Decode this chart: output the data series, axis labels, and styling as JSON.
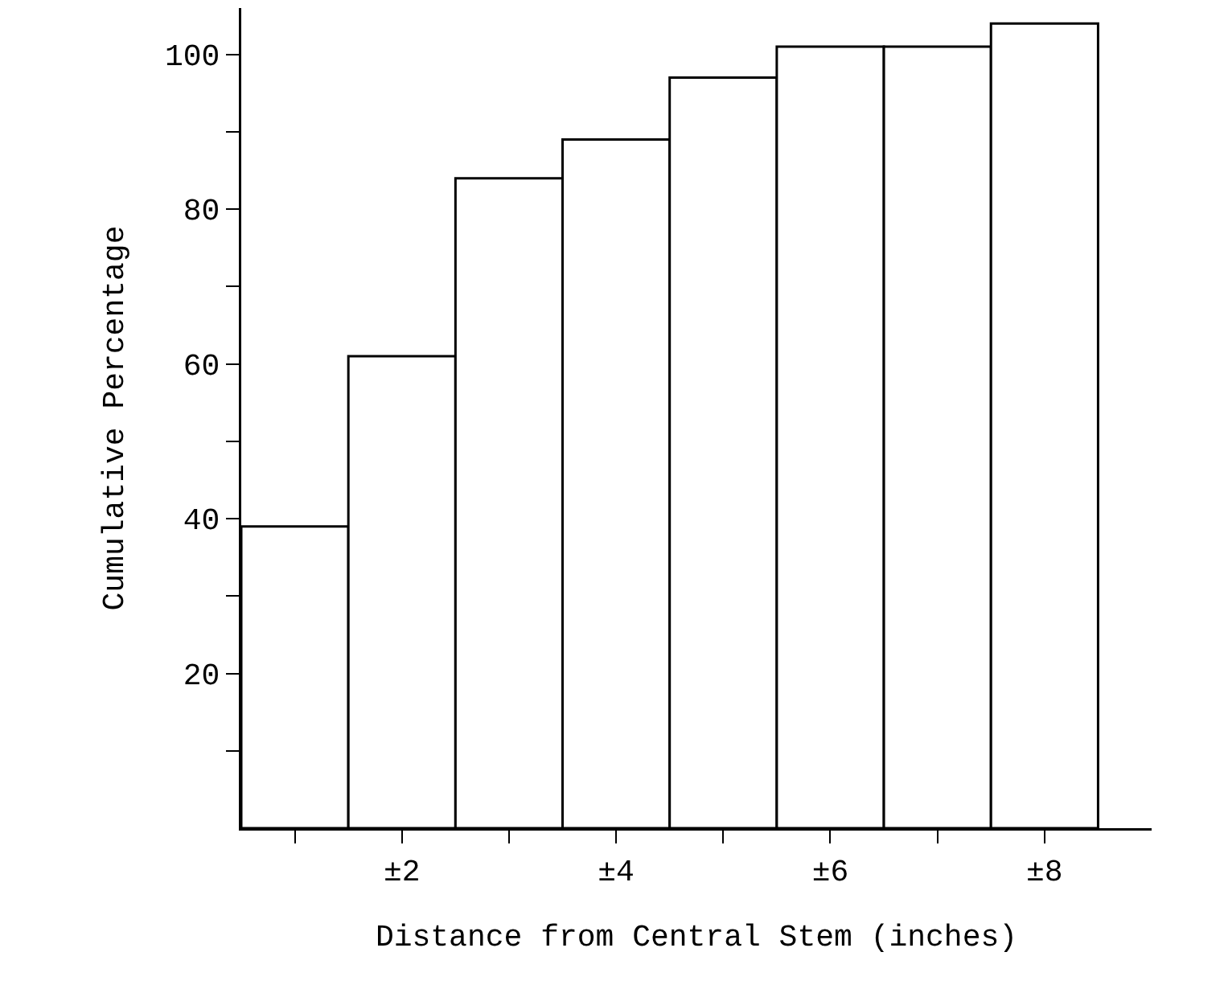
{
  "chart_data": {
    "type": "bar",
    "xlabel": "Distance from Central Stem (inches)",
    "ylabel": "Cumulative Percentage",
    "categories": [
      null,
      "±2",
      null,
      "±4",
      null,
      "±6",
      null,
      "±8"
    ],
    "values": [
      39,
      61,
      84,
      89,
      97,
      101,
      101,
      104
    ],
    "color": "#ffffff",
    "ylim": [
      0,
      106
    ],
    "yticks": [
      {
        "value": 10,
        "label": null
      },
      20,
      {
        "value": 30,
        "label": null
      },
      40,
      {
        "value": 50,
        "label": null
      },
      60,
      {
        "value": 70,
        "label": null
      },
      80,
      {
        "value": 90,
        "label": null
      },
      100
    ],
    "grid": false
  }
}
